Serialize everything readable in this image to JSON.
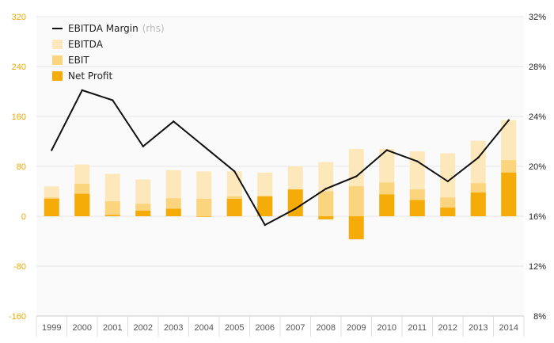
{
  "colors": {
    "ebitda": "#fde8bb",
    "ebit": "#fbd57e",
    "net_profit": "#f5ac09",
    "margin_line": "#111111",
    "left_axis_text": "#f0a800",
    "grid": "#e6e6e6",
    "plot_background": "#fafafa"
  },
  "chart_data": {
    "type": "bar",
    "categories": [
      "1999",
      "2000",
      "2001",
      "2002",
      "2003",
      "2004",
      "2005",
      "2006",
      "2007",
      "2008",
      "2009",
      "2010",
      "2011",
      "2012",
      "2013",
      "2014"
    ],
    "series": [
      {
        "name": "EBITDA",
        "kind": "bar",
        "axis": "left",
        "values": [
          48,
          83,
          68,
          59,
          74,
          72,
          72,
          70,
          80,
          87,
          108,
          108,
          104,
          101,
          121,
          154
        ]
      },
      {
        "name": "EBIT",
        "kind": "bar",
        "axis": "left",
        "values": [
          30,
          52,
          24,
          20,
          29,
          28,
          32,
          32,
          40,
          40,
          48,
          54,
          43,
          30,
          53,
          90
        ]
      },
      {
        "name": "Net Profit",
        "kind": "bar",
        "axis": "left",
        "values": [
          28,
          36,
          2,
          9,
          12,
          -1,
          28,
          32,
          43,
          -5,
          -37,
          35,
          26,
          14,
          38,
          70
        ]
      },
      {
        "name": "EBITDA Margin",
        "kind": "line",
        "axis": "right",
        "values": [
          21.3,
          26.1,
          25.3,
          21.6,
          23.6,
          21.6,
          19.6,
          15.3,
          16.6,
          18.2,
          19.2,
          21.3,
          20.4,
          18.8,
          20.7,
          23.7
        ]
      }
    ],
    "left_axis": {
      "min": -160,
      "max": 320,
      "ticks": [
        "-160",
        "-80",
        "0",
        "80",
        "160",
        "240",
        "320"
      ]
    },
    "right_axis": {
      "min": 8,
      "max": 32,
      "ticks": [
        "8%",
        "12%",
        "16%",
        "20%",
        "24%",
        "28%",
        "32%"
      ]
    },
    "legend": {
      "position": "top-left",
      "entries": [
        {
          "label": "EBITDA Margin",
          "suffix": "(rhs)",
          "kind": "line"
        },
        {
          "label": "EBITDA",
          "kind": "bar"
        },
        {
          "label": "EBIT",
          "kind": "bar"
        },
        {
          "label": "Net Profit",
          "kind": "bar"
        }
      ]
    },
    "grid": true,
    "title": "",
    "xlabel": "",
    "ylabel": ""
  }
}
